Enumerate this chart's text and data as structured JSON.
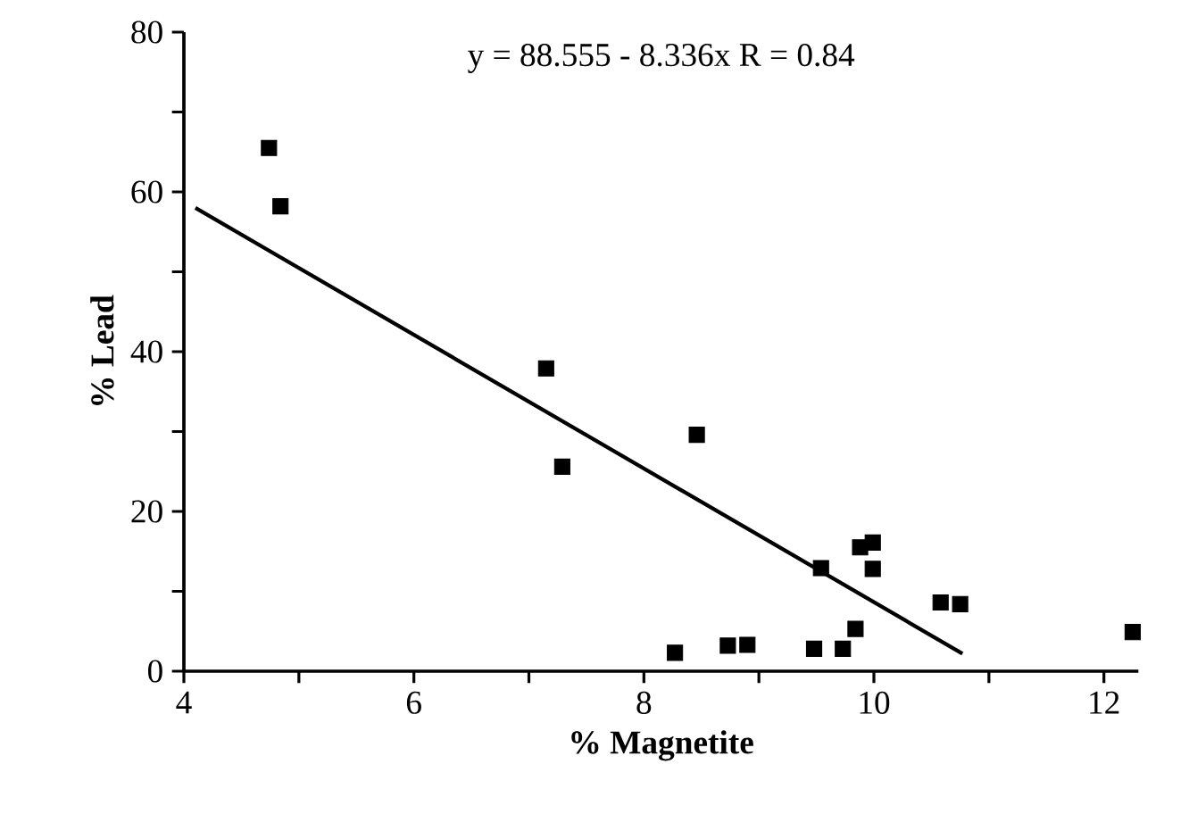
{
  "chart_data": {
    "type": "scatter",
    "xlabel": "% Magnetite",
    "ylabel": "% Lead",
    "annotations": [
      "y = 88.555 - 8.336x   R = 0.84"
    ],
    "xlim": [
      4,
      12.3
    ],
    "ylim": [
      0,
      80
    ],
    "xticks": [
      4,
      {
        "value": 5,
        "label": null
      },
      6,
      {
        "value": 7,
        "label": null
      },
      8,
      {
        "value": 9,
        "label": null
      },
      10,
      {
        "value": 11,
        "label": null
      },
      12
    ],
    "yticks": [
      0,
      {
        "value": 10,
        "label": null
      },
      20,
      {
        "value": 30,
        "label": null
      },
      40,
      {
        "value": 50,
        "label": null
      },
      60,
      {
        "value": 70,
        "label": null
      },
      80
    ],
    "marker": "square",
    "series": [
      {
        "color": "#000000",
        "x": [
          4.74,
          4.84,
          7.15,
          7.29,
          8.46,
          8.27,
          8.73,
          8.9,
          9.48,
          9.73,
          9.84,
          9.54,
          9.88,
          9.99,
          9.99,
          10.58,
          10.75,
          12.25
        ],
        "values": [
          65.5,
          58.2,
          37.9,
          25.6,
          29.6,
          2.3,
          3.2,
          3.3,
          2.8,
          2.8,
          5.3,
          12.9,
          15.5,
          16.1,
          12.8,
          8.6,
          8.4,
          4.9
        ]
      },
      {
        "type": "line",
        "color": "#000000",
        "marker": "none",
        "x": [
          4.1,
          10.77
        ],
        "values": [
          58,
          2.2
        ]
      }
    ]
  }
}
